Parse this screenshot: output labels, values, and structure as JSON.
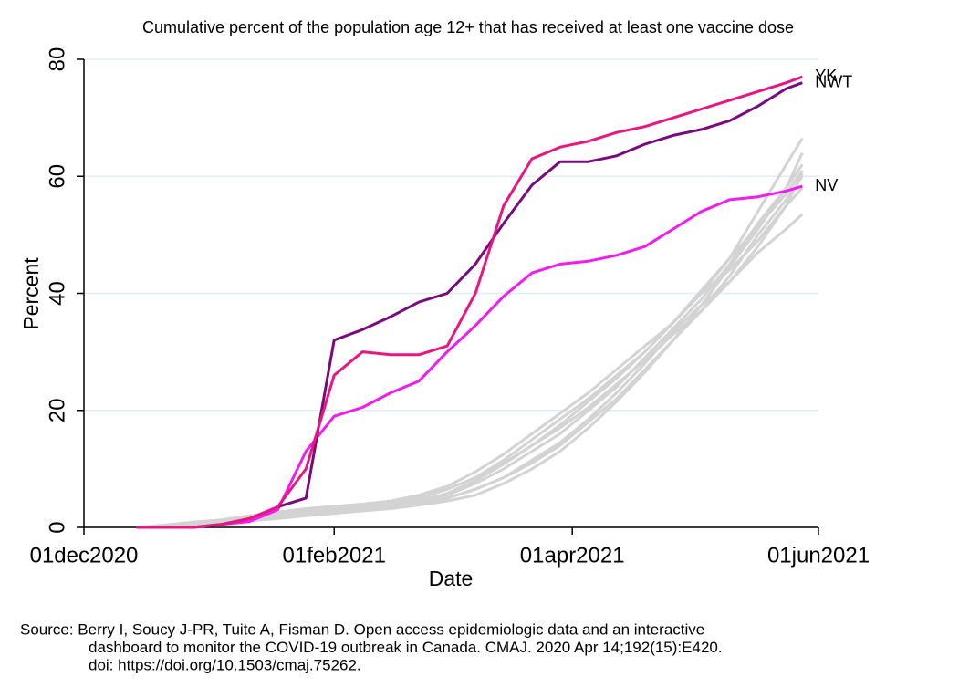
{
  "chart_data": {
    "type": "line",
    "title": "Cumulative percent of the population age 12+ that has received at least one vaccine dose",
    "xlabel": "Date",
    "ylabel": "Percent",
    "note": [
      "Source: Berry I, Soucy J-PR, Tuite A, Fisman D. Open access epidemiologic data and an interactive",
      "dashboard to monitor the COVID-19 outbreak in Canada. CMAJ. 2020 Apr 14;192(15):E420.",
      "doi: https://doi.org/10.1503/cmaj.75262."
    ],
    "x": [
      "2020-12-14",
      "2020-12-21",
      "2020-12-28",
      "2021-01-04",
      "2021-01-11",
      "2021-01-18",
      "2021-01-25",
      "2021-02-01",
      "2021-02-08",
      "2021-02-15",
      "2021-02-22",
      "2021-03-01",
      "2021-03-08",
      "2021-03-15",
      "2021-03-22",
      "2021-03-29",
      "2021-04-05",
      "2021-04-12",
      "2021-04-19",
      "2021-04-26",
      "2021-05-03",
      "2021-05-10",
      "2021-05-17",
      "2021-05-24",
      "2021-05-28"
    ],
    "xlim": [
      "2020-12-01",
      "2021-06-01"
    ],
    "xticks": [
      {
        "value": "2020-12-01",
        "label": "01dec2020"
      },
      {
        "value": "2021-02-01",
        "label": "01feb2021"
      },
      {
        "value": "2021-04-01",
        "label": "01apr2021"
      },
      {
        "value": "2021-06-01",
        "label": "01jun2021"
      }
    ],
    "ylim": [
      0,
      80
    ],
    "yticks": [
      0,
      20,
      40,
      60,
      80
    ],
    "grid": true,
    "series": [
      {
        "color": "#d3d3d3",
        "values": [
          0,
          0.3,
          0.7,
          1,
          1.5,
          2,
          2.5,
          3,
          3.3,
          3.7,
          4.5,
          5.5,
          7.5,
          10,
          13,
          16,
          20,
          24,
          29,
          34,
          39,
          45,
          52,
          58,
          62
        ]
      },
      {
        "color": "#d3d3d3",
        "values": [
          0,
          0.2,
          0.5,
          0.8,
          1.2,
          1.8,
          2.2,
          2.7,
          3,
          3.5,
          4,
          5,
          6.5,
          8.5,
          11,
          14,
          18,
          22,
          27,
          32,
          37,
          43,
          50,
          56,
          60
        ]
      },
      {
        "color": "#d3d3d3",
        "values": [
          0,
          0.4,
          0.9,
          1.3,
          2,
          2.6,
          3.2,
          3.6,
          4,
          4.5,
          5.5,
          7,
          9.5,
          12.5,
          16,
          19.5,
          23,
          27,
          31,
          35,
          40,
          46,
          54,
          62,
          66.5
        ]
      },
      {
        "color": "#d3d3d3",
        "values": [
          0,
          0.2,
          0.6,
          1,
          1.4,
          2,
          2.4,
          2.8,
          3.1,
          3.5,
          4.2,
          5,
          6.5,
          8.5,
          11.5,
          14.5,
          18.5,
          23,
          28,
          33.5,
          38,
          42,
          47,
          51,
          53.5
        ]
      },
      {
        "color": "#d3d3d3",
        "values": [
          0,
          0.3,
          0.8,
          1.2,
          1.8,
          2.4,
          2.9,
          3.4,
          3.8,
          4.2,
          5,
          6.5,
          8.5,
          11.5,
          15,
          18.5,
          22,
          26,
          30,
          35,
          40,
          44,
          49,
          55,
          58
        ]
      },
      {
        "color": "#d3d3d3",
        "values": [
          0,
          0.1,
          0.4,
          0.7,
          1.1,
          1.5,
          2,
          2.4,
          2.8,
          3.2,
          3.8,
          4.5,
          5.5,
          7.5,
          10,
          13,
          17,
          21.5,
          26.5,
          32,
          38,
          44.5,
          51,
          58,
          64
        ]
      },
      {
        "color": "#d3d3d3",
        "values": [
          0,
          0.3,
          0.7,
          1.1,
          1.6,
          2.2,
          2.8,
          3.3,
          3.7,
          4.3,
          5.2,
          6.5,
          8.5,
          11,
          14,
          17,
          20.5,
          24.5,
          28.5,
          33,
          37,
          42,
          48,
          55,
          60.5
        ]
      },
      {
        "color": "#d3d3d3",
        "values": [
          0,
          0.2,
          0.5,
          0.9,
          1.3,
          1.9,
          2.5,
          3,
          3.4,
          3.9,
          4.6,
          5.8,
          8,
          10.8,
          14,
          17.5,
          21.5,
          25.5,
          30,
          35,
          40.5,
          46,
          51.5,
          57,
          61
        ]
      },
      {
        "name": "NV",
        "color": "#f21cf0",
        "values": [
          0,
          0,
          0,
          0.5,
          1,
          3,
          13,
          19,
          20.5,
          23,
          25,
          30,
          34.5,
          39.5,
          43.5,
          45,
          45.5,
          46.5,
          48,
          51,
          54,
          56,
          56.5,
          57.5,
          58.3
        ]
      },
      {
        "name": "NWT",
        "color": "#7a0b7c",
        "values": [
          0,
          0,
          0,
          0.5,
          1.5,
          3.5,
          5,
          32,
          33.8,
          36,
          38.5,
          40,
          45,
          52,
          58.5,
          62.5,
          62.5,
          63.5,
          65.5,
          67,
          68,
          69.5,
          72,
          75,
          76
        ]
      },
      {
        "name": "YK",
        "color": "#ea1680",
        "values": [
          0,
          0,
          0,
          0.5,
          1.5,
          3.5,
          10,
          26,
          30,
          29.5,
          29.5,
          31,
          40,
          55,
          63,
          65,
          66,
          67.5,
          68.5,
          70,
          71.5,
          73,
          74.5,
          76,
          77
        ]
      }
    ]
  }
}
